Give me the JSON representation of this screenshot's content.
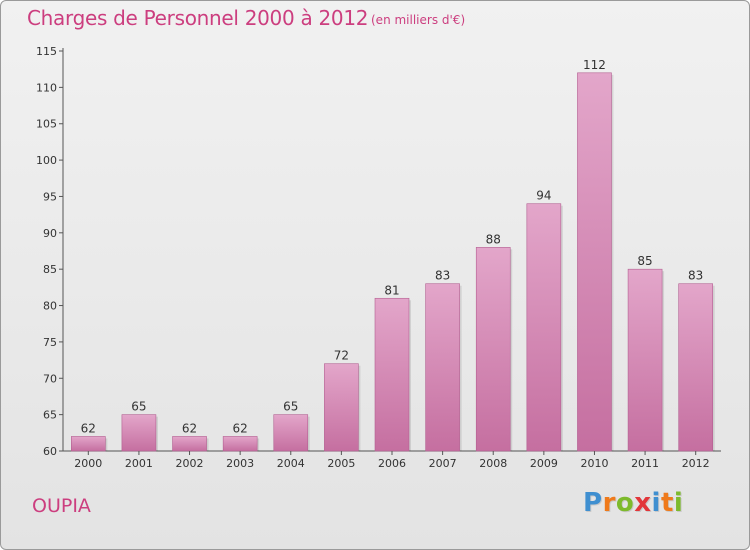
{
  "chart_data": {
    "type": "bar",
    "title": "Charges de Personnel 2000 à 2012",
    "subtitle": "(en milliers d'€)",
    "categories": [
      "2000",
      "2001",
      "2002",
      "2003",
      "2004",
      "2005",
      "2006",
      "2007",
      "2008",
      "2009",
      "2010",
      "2011",
      "2012"
    ],
    "values": [
      62,
      65,
      62,
      62,
      65,
      72,
      81,
      83,
      88,
      94,
      112,
      85,
      83
    ],
    "ylim": [
      60,
      115
    ],
    "yticks": [
      60,
      65,
      70,
      75,
      80,
      85,
      90,
      95,
      100,
      105,
      110,
      115
    ],
    "grid": false,
    "bar_color": "#c56fa0",
    "bar_color_light": "#e3a6ca"
  },
  "footer": {
    "commune": "OUPIA",
    "logo_text": "Proxiti"
  },
  "colors": {
    "accent": "#cc3e7f",
    "logo": [
      "#3f8fd0",
      "#ef7a1b",
      "#7dba2c",
      "#e2363a",
      "#3f8fd0",
      "#ef7a1b",
      "#7dba2c"
    ]
  }
}
